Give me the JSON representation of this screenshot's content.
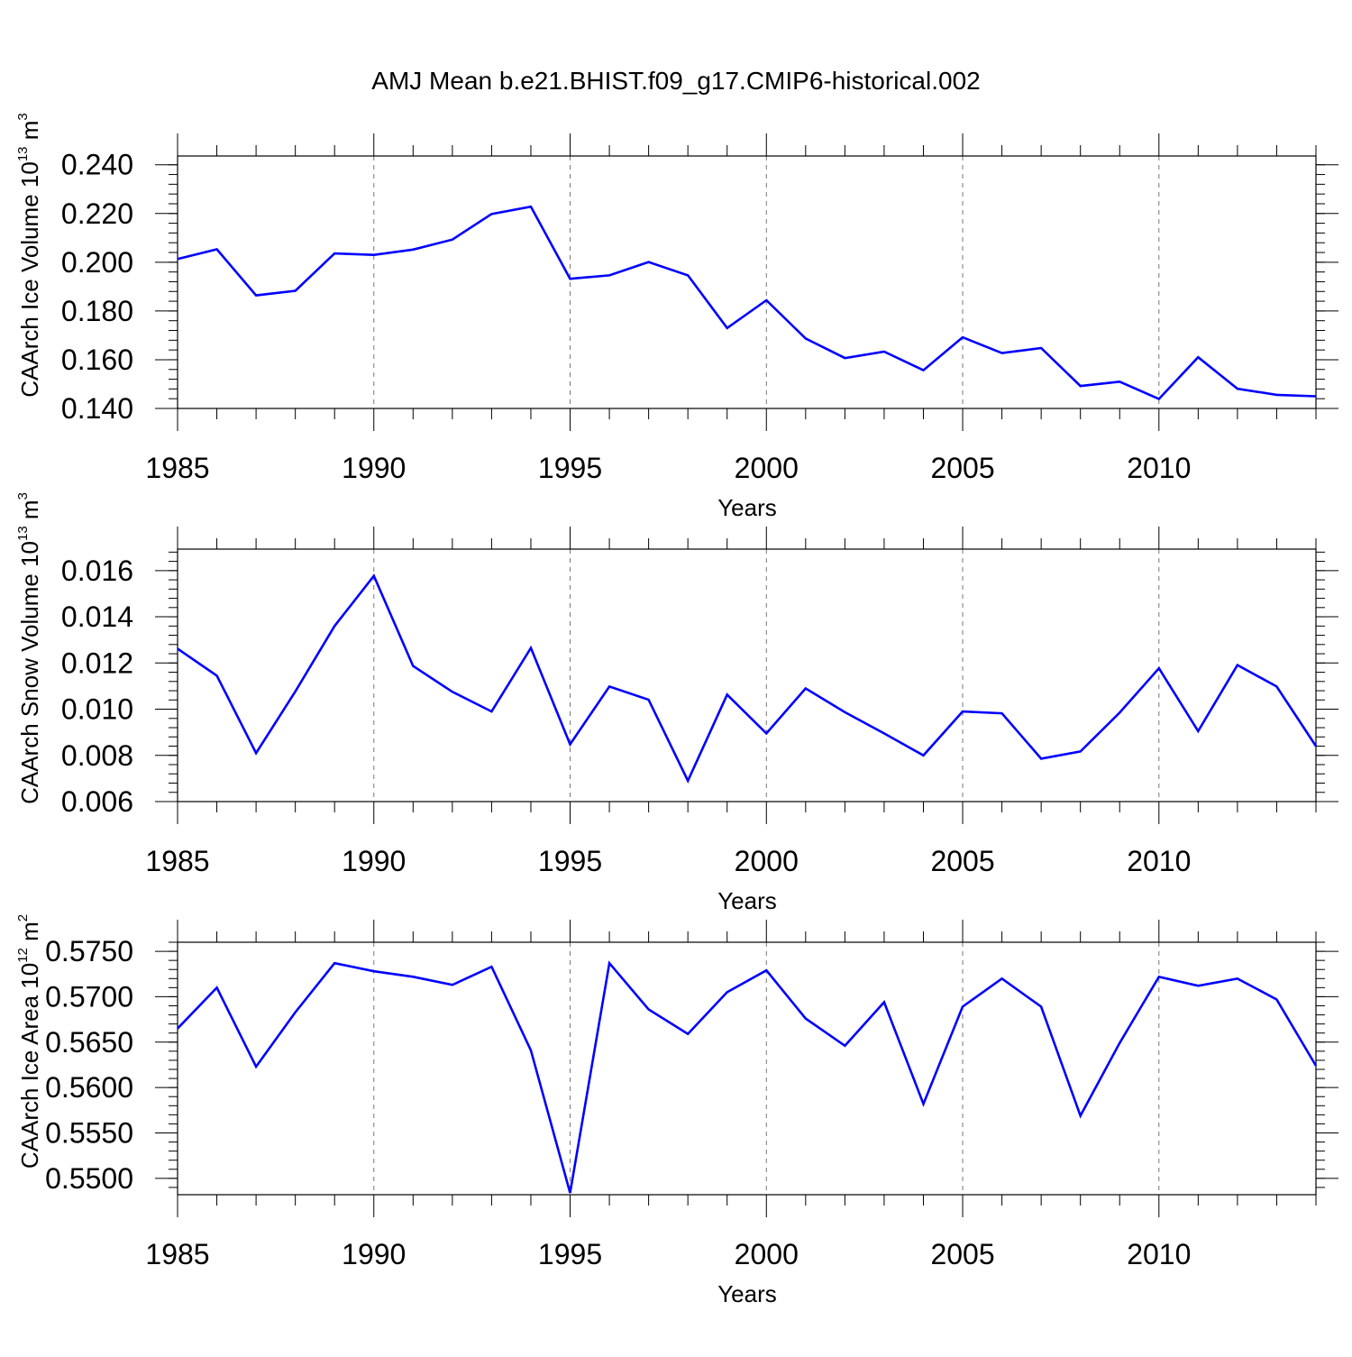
{
  "figure_title": "AMJ Mean b.e21.BHIST.f09_g17.CMIP6-historical.002",
  "colors": {
    "line": "#0000ff",
    "axes": "#000000",
    "grid": "#777777"
  },
  "chart_data": [
    {
      "type": "line",
      "title": "AMJ Mean b.e21.BHIST.f09_g17.CMIP6-historical.002",
      "xlabel": "Years",
      "ylabel": {
        "text": "CAArch Ice Volume 10",
        "exp": "13",
        "unit": " m",
        "unit_exp": "3"
      },
      "xlim": [
        1985,
        2014
      ],
      "ylim": [
        0.14,
        0.2436
      ],
      "xticks": [
        1985,
        1990,
        1995,
        2000,
        2005,
        2010
      ],
      "xtick_labels": [
        "1985",
        "1990",
        "1995",
        "2000",
        "2005",
        "2010"
      ],
      "yticks": [
        0.14,
        0.16,
        0.18,
        0.2,
        0.22,
        0.24
      ],
      "ytick_labels": [
        "0.140",
        "0.160",
        "0.180",
        "0.200",
        "0.220",
        "0.240"
      ],
      "y_minor_step": 0.004,
      "grid": "vertical dashed at major x ticks",
      "x": [
        1985,
        1986,
        1987,
        1988,
        1989,
        1990,
        1991,
        1992,
        1993,
        1994,
        1995,
        1996,
        1997,
        1998,
        1999,
        2000,
        2001,
        2002,
        2003,
        2004,
        2005,
        2006,
        2007,
        2008,
        2009,
        2010,
        2011,
        2012,
        2013,
        2014
      ],
      "values": [
        0.2013,
        0.2053,
        0.1864,
        0.1883,
        0.2036,
        0.203,
        0.2052,
        0.2093,
        0.2198,
        0.2228,
        0.1932,
        0.1946,
        0.2001,
        0.1946,
        0.173,
        0.1844,
        0.1687,
        0.1607,
        0.1633,
        0.1557,
        0.1692,
        0.1627,
        0.1648,
        0.1492,
        0.151,
        0.1439,
        0.161,
        0.1481,
        0.1456,
        0.145
      ]
    },
    {
      "type": "line",
      "xlabel": "Years",
      "ylabel": {
        "text": "CAArch Snow Volume 10",
        "exp": "13",
        "unit": " m",
        "unit_exp": "3"
      },
      "xlim": [
        1985,
        2014
      ],
      "ylim": [
        0.006,
        0.01693
      ],
      "xticks": [
        1985,
        1990,
        1995,
        2000,
        2005,
        2010
      ],
      "xtick_labels": [
        "1985",
        "1990",
        "1995",
        "2000",
        "2005",
        "2010"
      ],
      "yticks": [
        0.006,
        0.008,
        0.01,
        0.012,
        0.014,
        0.016
      ],
      "ytick_labels": [
        "0.006",
        "0.008",
        "0.010",
        "0.012",
        "0.014",
        "0.016"
      ],
      "y_minor_step": 0.0004,
      "grid": "vertical dashed at major x ticks",
      "x": [
        1985,
        1986,
        1987,
        1988,
        1989,
        1990,
        1991,
        1992,
        1993,
        1994,
        1995,
        1996,
        1997,
        1998,
        1999,
        2000,
        2001,
        2002,
        2003,
        2004,
        2005,
        2006,
        2007,
        2008,
        2009,
        2010,
        2011,
        2012,
        2013,
        2014
      ],
      "values": [
        0.01262,
        0.01145,
        0.0081,
        0.01077,
        0.0136,
        0.01577,
        0.01187,
        0.01075,
        0.0099,
        0.01265,
        0.00848,
        0.01098,
        0.01041,
        0.0069,
        0.01063,
        0.00895,
        0.0109,
        0.00987,
        0.00895,
        0.008,
        0.0099,
        0.00982,
        0.00786,
        0.00817,
        0.00985,
        0.01177,
        0.00905,
        0.01191,
        0.01098,
        0.0084
      ]
    },
    {
      "type": "line",
      "xlabel": "Years",
      "ylabel": {
        "text": "CAArch Ice Area 10",
        "exp": "12",
        "unit": " m",
        "unit_exp": "2"
      },
      "xlim": [
        1985,
        2014
      ],
      "ylim": [
        0.5482,
        0.576
      ],
      "xticks": [
        1985,
        1990,
        1995,
        2000,
        2005,
        2010
      ],
      "xtick_labels": [
        "1985",
        "1990",
        "1995",
        "2000",
        "2005",
        "2010"
      ],
      "yticks": [
        0.55,
        0.555,
        0.56,
        0.565,
        0.57,
        0.575
      ],
      "ytick_labels": [
        "0.5500",
        "0.5550",
        "0.5600",
        "0.5650",
        "0.5700",
        "0.5750"
      ],
      "y_minor_step": 0.001,
      "grid": "vertical dashed at major x ticks",
      "x": [
        1985,
        1986,
        1987,
        1988,
        1989,
        1990,
        1991,
        1992,
        1993,
        1994,
        1995,
        1996,
        1997,
        1998,
        1999,
        2000,
        2001,
        2002,
        2003,
        2004,
        2005,
        2006,
        2007,
        2008,
        2009,
        2010,
        2011,
        2012,
        2013,
        2014
      ],
      "values": [
        0.5665,
        0.571,
        0.5623,
        0.5683,
        0.5737,
        0.5728,
        0.5722,
        0.5713,
        0.5733,
        0.5641,
        0.5484,
        0.5737,
        0.5686,
        0.5659,
        0.5705,
        0.5729,
        0.5676,
        0.5646,
        0.5694,
        0.5582,
        0.5689,
        0.572,
        0.5689,
        0.5569,
        0.5649,
        0.5722,
        0.5712,
        0.572,
        0.5697,
        0.5624
      ]
    }
  ]
}
